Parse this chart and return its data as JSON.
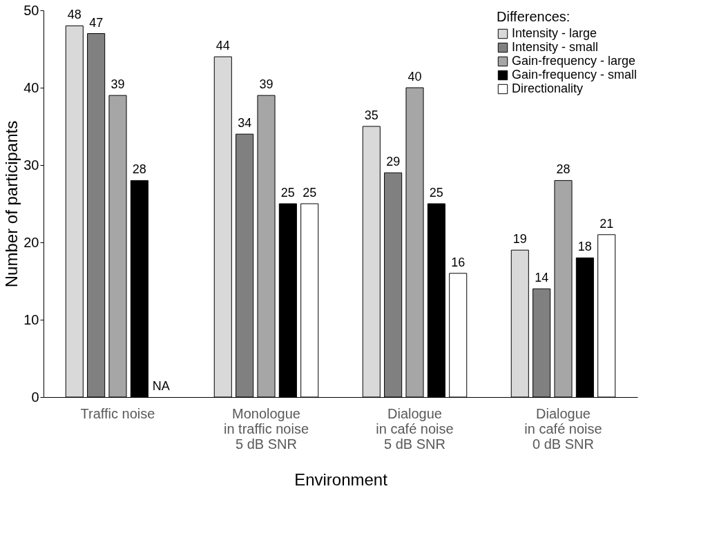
{
  "chart_data": {
    "type": "bar",
    "xlabel": "Environment",
    "ylabel": "Number of participants",
    "legend_title": "Differences:",
    "categories": [
      "Traffic noise",
      "Monologue\nin traffic noise\n5 dB SNR",
      "Dialogue\nin café noise\n5 dB SNR",
      "Dialogue\nin café noise\n0 dB SNR"
    ],
    "series": [
      {
        "name": "Intensity - large",
        "color": "#d9d9d9",
        "values": [
          48,
          44,
          35,
          19
        ],
        "value_labels": [
          "48",
          "44",
          "35",
          "19"
        ]
      },
      {
        "name": "Intensity - small",
        "color": "#808080",
        "values": [
          47,
          34,
          29,
          14
        ],
        "value_labels": [
          "47",
          "34",
          "29",
          "14"
        ]
      },
      {
        "name": "Gain-frequency - large",
        "color": "#a6a6a6",
        "values": [
          39,
          39,
          40,
          28
        ],
        "value_labels": [
          "39",
          "39",
          "40",
          "28"
        ]
      },
      {
        "name": "Gain-frequency - small",
        "color": "#000000",
        "values": [
          28,
          25,
          25,
          18
        ],
        "value_labels": [
          "28",
          "25",
          "25",
          "18"
        ]
      },
      {
        "name": "Directionality",
        "color": "#ffffff",
        "values": [
          null,
          25,
          16,
          21
        ],
        "value_labels": [
          "NA",
          "25",
          "16",
          "21"
        ]
      }
    ],
    "ylim": [
      0,
      50
    ],
    "yticks": [
      0,
      10,
      20,
      30,
      40,
      50
    ],
    "grid": false,
    "legend": "top right"
  }
}
